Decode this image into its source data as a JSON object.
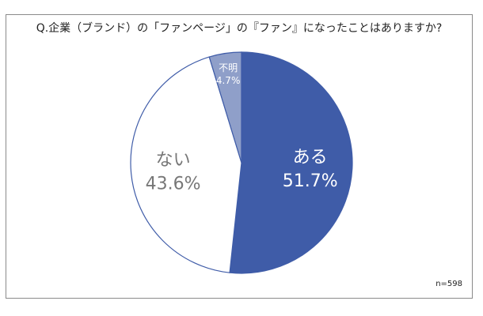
{
  "chart_data": {
    "type": "pie",
    "title": "Q.企業（ブランド）の「ファンページ」の『ファン』になったことはありますか?",
    "slices": [
      {
        "label": "ある",
        "value": 51.7,
        "value_label": "51.7%",
        "color": "#3f5ca8",
        "text_color": "#ffffff"
      },
      {
        "label": "ない",
        "value": 43.6,
        "value_label": "43.6%",
        "color": "#ffffff",
        "text_color": "#777777"
      },
      {
        "label": "不明",
        "value": 4.7,
        "value_label": "4.7%",
        "color": "#8f9fc9",
        "text_color": "#ffffff"
      }
    ],
    "note": "n=598",
    "stroke_color": "#3f5ca8"
  }
}
